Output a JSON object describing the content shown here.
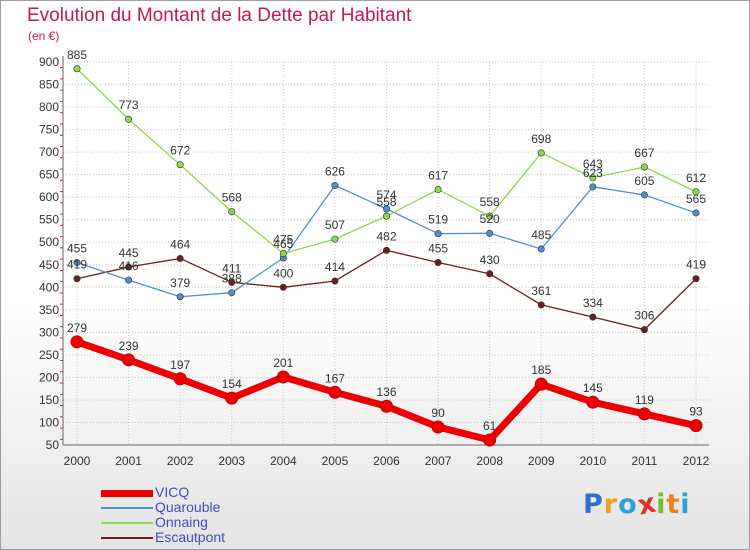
{
  "chart_data": {
    "type": "line",
    "title": "Evolution du Montant de la Dette par Habitant",
    "ylabel": "(en €)",
    "xlabel": "",
    "x": [
      "2000",
      "2001",
      "2002",
      "2003",
      "2004",
      "2005",
      "2006",
      "2007",
      "2008",
      "2009",
      "2010",
      "2011",
      "2012"
    ],
    "ylim": [
      50,
      900
    ],
    "yticks": [
      50,
      100,
      150,
      200,
      250,
      300,
      350,
      400,
      450,
      500,
      550,
      600,
      650,
      700,
      750,
      800,
      850,
      900
    ],
    "grid": true,
    "legend_position": "bottom-left",
    "series": [
      {
        "name": "VICQ",
        "color": "#ee0000",
        "values": [
          279,
          239,
          197,
          154,
          201,
          167,
          136,
          90,
          61,
          185,
          145,
          119,
          93
        ]
      },
      {
        "name": "Quarouble",
        "color": "#4f8fd0",
        "values": [
          455,
          416,
          379,
          388,
          465,
          626,
          574,
          519,
          520,
          485,
          623,
          605,
          565
        ]
      },
      {
        "name": "Onnaing",
        "color": "#8fd84a",
        "values": [
          885,
          773,
          672,
          568,
          475,
          507,
          558,
          617,
          558,
          698,
          643,
          667,
          612
        ]
      },
      {
        "name": "Escautpont",
        "color": "#6b1f1f",
        "values": [
          419,
          445,
          464,
          411,
          400,
          414,
          482,
          455,
          430,
          361,
          334,
          306,
          419
        ]
      }
    ]
  },
  "logo": {
    "letters": [
      {
        "ch": "P",
        "color": "#2f6fd0"
      },
      {
        "ch": "r",
        "color": "#f0a020"
      },
      {
        "ch": "o",
        "color": "#2fa0d8"
      },
      {
        "ch": "x",
        "color": "#e0302a"
      },
      {
        "ch": "i",
        "color": "#70c030"
      },
      {
        "ch": "t",
        "color": "#f08020"
      },
      {
        "ch": "i",
        "color": "#2fa0d8"
      }
    ]
  }
}
